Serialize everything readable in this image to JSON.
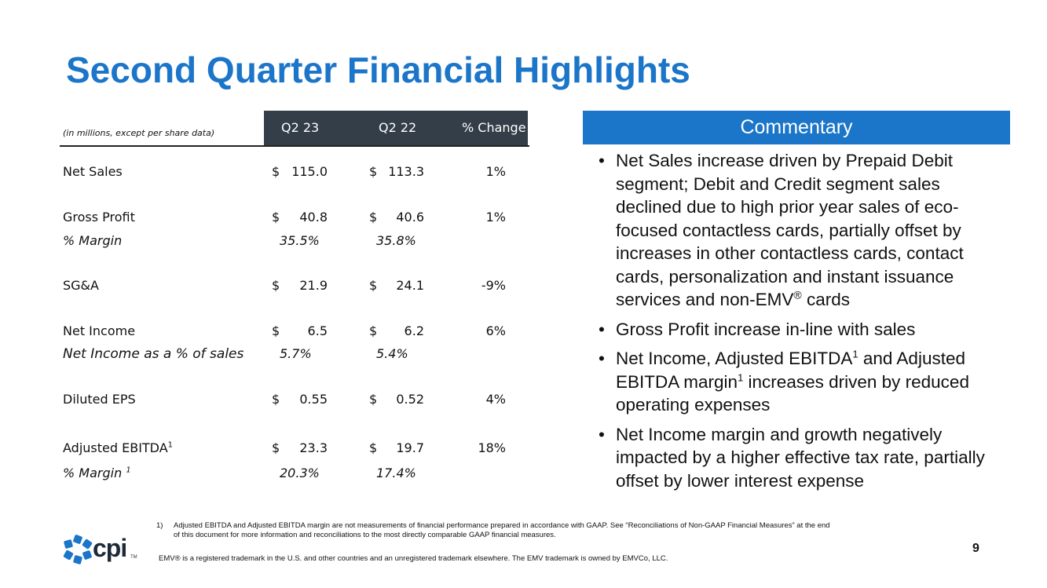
{
  "title": "Second Quarter Financial Highlights",
  "table": {
    "units_note": "(in millions, except per share data)",
    "columns": [
      "Q2 23",
      "Q2 22",
      "% Change"
    ],
    "rows": {
      "net_sales": {
        "label": "Net Sales",
        "sym": "$",
        "q2_23": "115.0",
        "q2_22": "113.3",
        "change": "1%"
      },
      "gross_profit": {
        "label": "Gross Profit",
        "sym": "$",
        "q2_23": "40.8",
        "q2_22": "40.6",
        "change": "1%"
      },
      "gross_margin": {
        "label": "% Margin",
        "q2_23": "35.5%",
        "q2_22": "35.8%"
      },
      "sga": {
        "label": "SG&A",
        "sym": "$",
        "q2_23": "21.9",
        "q2_22": "24.1",
        "change": "-9%"
      },
      "net_income": {
        "label": "Net Income",
        "sym": "$",
        "q2_23": "6.5",
        "q2_22": "6.2",
        "change": "6%"
      },
      "net_income_pct": {
        "label": "Net Income as a % of sales",
        "q2_23": "5.7%",
        "q2_22": "5.4%"
      },
      "diluted_eps": {
        "label": "Diluted EPS",
        "sym": "$",
        "q2_23": "0.55",
        "q2_22": "0.52",
        "change": "4%"
      },
      "adj_ebitda": {
        "label": "Adjusted EBITDA",
        "sup": "1",
        "sym": "$",
        "q2_23": "23.3",
        "q2_22": "19.7",
        "change": "18%"
      },
      "adj_ebitda_margin": {
        "label": "% Margin",
        "sup": "1",
        "q2_23": "20.3%",
        "q2_22": "17.4%"
      }
    }
  },
  "commentary": {
    "header": "Commentary",
    "bullet_char": "•",
    "b1_text": "Net Sales increase driven by Prepaid Debit segment; Debit and Credit segment sales declined due to high prior year sales of eco-focused contactless cards, partially offset by increases in other contactless cards, contact cards, personalization and instant issuance services and non-EMV",
    "b1_reg": "®",
    "b1_tail": " cards",
    "b2_text": "Gross Profit increase in-line with sales",
    "b3_a": "Net Income, Adjusted EBITDA",
    "b3_sup1": "1",
    "b3_b": " and Adjusted EBITDA margin",
    "b3_sup2": "1",
    "b3_c": " increases driven by reduced operating expenses",
    "b4_text": "Net Income margin and growth negatively impacted by a higher effective tax rate, partially offset by lower interest expense"
  },
  "footnote": {
    "num": "1)",
    "text": "Adjusted EBITDA and Adjusted EBITDA margin are not measurements of financial performance prepared in accordance with GAAP. See “Reconciliations of Non-GAAP Financial Measures” at the end of this document for more information and reconciliations to the most directly comparable GAAP financial measures."
  },
  "trademark_note": "EMV® is a registered trademark in the U.S. and other countries and an unregistered trademark elsewhere. The EMV trademark is owned by EMVCo, LLC.",
  "logo": {
    "text": "cpi",
    "tm": "TM",
    "color": "#1b75c9"
  },
  "page_number": "9",
  "colors": {
    "title": "#1b75c9",
    "header_bar": "#333e48",
    "commentary_bar": "#1b75c9"
  }
}
